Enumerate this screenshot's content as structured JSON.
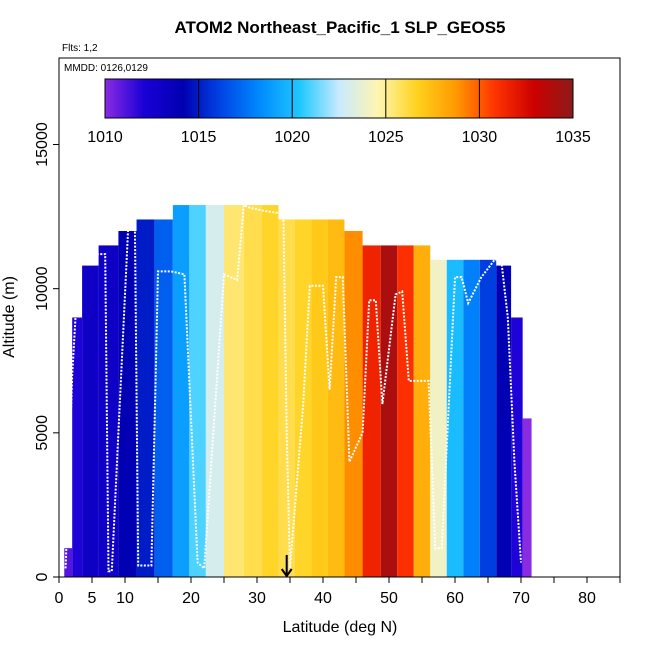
{
  "chart_data": {
    "type": "heatmap",
    "title": "ATOM2 Northeast_Pacific_1 SLP_GEOS5",
    "info_flights": "Flts: 1,2",
    "info_dates": "MMDD: 0126,0129",
    "xlabel": "Latitude (deg N)",
    "ylabel": "Altitude (m)",
    "xlim": [
      0,
      85
    ],
    "ylim": [
      0,
      18000
    ],
    "xticks": [
      0,
      5,
      10,
      20,
      30,
      40,
      50,
      60,
      70,
      80
    ],
    "yticks": [
      0,
      5000,
      10000,
      15000
    ],
    "colorbar": {
      "ticks": [
        1010,
        1015,
        1020,
        1025,
        1030,
        1035
      ],
      "range": [
        1010,
        1035
      ],
      "colors": [
        "#8a2be2",
        "#1a00d6",
        "#0000b0",
        "#0046e6",
        "#008cff",
        "#1fc8ff",
        "#c8eaff",
        "#fff5b0",
        "#ffd21e",
        "#ff9900",
        "#ff3300",
        "#cc0000",
        "#8c1a1a"
      ]
    },
    "columns": [
      {
        "lat": 1.5,
        "slp": 1011,
        "top": 1000
      },
      {
        "lat": 2.5,
        "slp": 1012,
        "top": 9000
      },
      {
        "lat": 4.5,
        "slp": 1013,
        "top": 10800
      },
      {
        "lat": 7.5,
        "slp": 1013,
        "top": 11500
      },
      {
        "lat": 10.5,
        "slp": 1014,
        "top": 12000
      },
      {
        "lat": 13.0,
        "slp": 1015,
        "top": 12400
      },
      {
        "lat": 16.0,
        "slp": 1017,
        "top": 12400
      },
      {
        "lat": 18.5,
        "slp": 1019,
        "top": 12900
      },
      {
        "lat": 21.0,
        "slp": 1021,
        "top": 12900
      },
      {
        "lat": 23.5,
        "slp": 1023,
        "top": 12900
      },
      {
        "lat": 26.5,
        "slp": 1025.5,
        "top": 12900
      },
      {
        "lat": 29.5,
        "slp": 1026,
        "top": 12900
      },
      {
        "lat": 32.0,
        "slp": 1026.5,
        "top": 12900
      },
      {
        "lat": 34.5,
        "slp": 1026,
        "top": 12400
      },
      {
        "lat": 37.0,
        "slp": 1026.5,
        "top": 12400
      },
      {
        "lat": 39.5,
        "slp": 1027,
        "top": 12400
      },
      {
        "lat": 42.0,
        "slp": 1027.5,
        "top": 12400
      },
      {
        "lat": 44.5,
        "slp": 1029,
        "top": 12000
      },
      {
        "lat": 47.5,
        "slp": 1031.5,
        "top": 11500
      },
      {
        "lat": 50.0,
        "slp": 1034,
        "top": 11500
      },
      {
        "lat": 52.5,
        "slp": 1031,
        "top": 11500
      },
      {
        "lat": 55.0,
        "slp": 1028,
        "top": 11500
      },
      {
        "lat": 57.5,
        "slp": 1024,
        "top": 11000
      },
      {
        "lat": 60.0,
        "slp": 1020,
        "top": 11000
      },
      {
        "lat": 62.5,
        "slp": 1018,
        "top": 11000
      },
      {
        "lat": 65.0,
        "slp": 1016,
        "top": 11000
      },
      {
        "lat": 67.5,
        "slp": 1014,
        "top": 10800
      },
      {
        "lat": 69.5,
        "slp": 1012,
        "top": 9000
      },
      {
        "lat": 71.0,
        "slp": 1010,
        "top": 5500
      }
    ],
    "flight_track_lat": [
      1,
      2,
      3,
      4,
      7,
      7.5,
      8,
      10.5,
      11.5,
      12,
      14,
      15,
      17,
      19,
      21,
      22,
      25,
      27,
      28,
      29,
      31,
      34,
      34.5,
      35,
      37,
      38,
      40,
      41,
      42,
      43,
      44,
      46,
      47,
      48,
      49,
      51,
      52,
      53,
      56,
      57,
      58,
      60,
      61,
      62,
      64,
      65,
      66,
      67,
      68,
      69,
      70
    ],
    "flight_track_alt": [
      300,
      7000,
      11000,
      11200,
      11200,
      200,
      200,
      12200,
      12100,
      400,
      400,
      10600,
      10600,
      10500,
      500,
      300,
      10500,
      10300,
      12900,
      12800,
      12700,
      12600,
      5000,
      300,
      6000,
      10100,
      10100,
      6500,
      10400,
      10400,
      4000,
      5000,
      9600,
      9600,
      6000,
      9800,
      9900,
      6800,
      6800,
      1000,
      1000,
      10400,
      10400,
      9500,
      10400,
      10700,
      11000,
      11000,
      9000,
      4000,
      500
    ],
    "marker": {
      "lat": 34.5,
      "alt": 0
    }
  }
}
